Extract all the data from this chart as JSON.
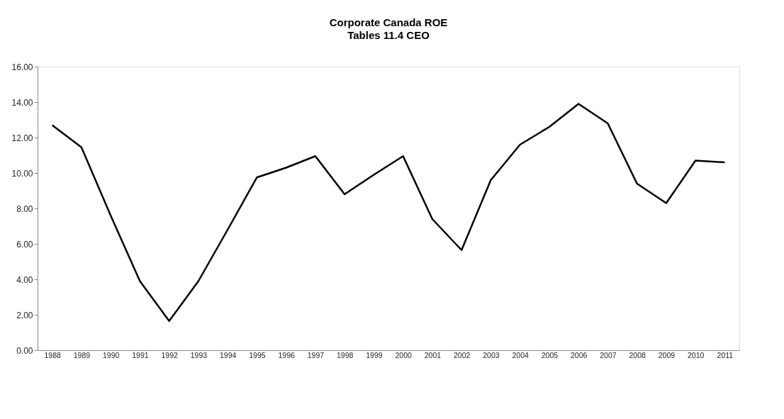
{
  "chart_data": {
    "type": "line",
    "title": "Corporate Canada ROE",
    "subtitle": "Tables 11.4 CEO",
    "categories": [
      "1988",
      "1989",
      "1990",
      "1991",
      "1992",
      "1993",
      "1994",
      "1995",
      "1996",
      "1997",
      "1998",
      "1999",
      "2000",
      "2001",
      "2002",
      "2003",
      "2004",
      "2005",
      "2006",
      "2007",
      "2008",
      "2009",
      "2010",
      "2011"
    ],
    "series": [
      {
        "color": "#000000",
        "values": [
          12.7,
          11.45,
          7.6,
          3.9,
          1.65,
          3.9,
          6.8,
          9.75,
          10.3,
          10.95,
          8.8,
          9.9,
          10.95,
          7.4,
          5.65,
          9.6,
          11.6,
          12.6,
          13.9,
          12.8,
          9.4,
          8.3,
          10.7,
          10.6
        ]
      }
    ],
    "ylim": [
      0,
      16
    ],
    "yticks": [
      {
        "value": 0,
        "label": "0.00"
      },
      {
        "value": 2,
        "label": "2.00"
      },
      {
        "value": 4,
        "label": "4.00"
      },
      {
        "value": 6,
        "label": "6.00"
      },
      {
        "value": 8,
        "label": "8.00"
      },
      {
        "value": 10,
        "label": "10.00"
      },
      {
        "value": 12,
        "label": "12.00"
      },
      {
        "value": 14,
        "label": "14.00"
      },
      {
        "value": 16,
        "label": "16.00"
      }
    ],
    "grid": false,
    "marker": "none",
    "line_style": "solid"
  }
}
